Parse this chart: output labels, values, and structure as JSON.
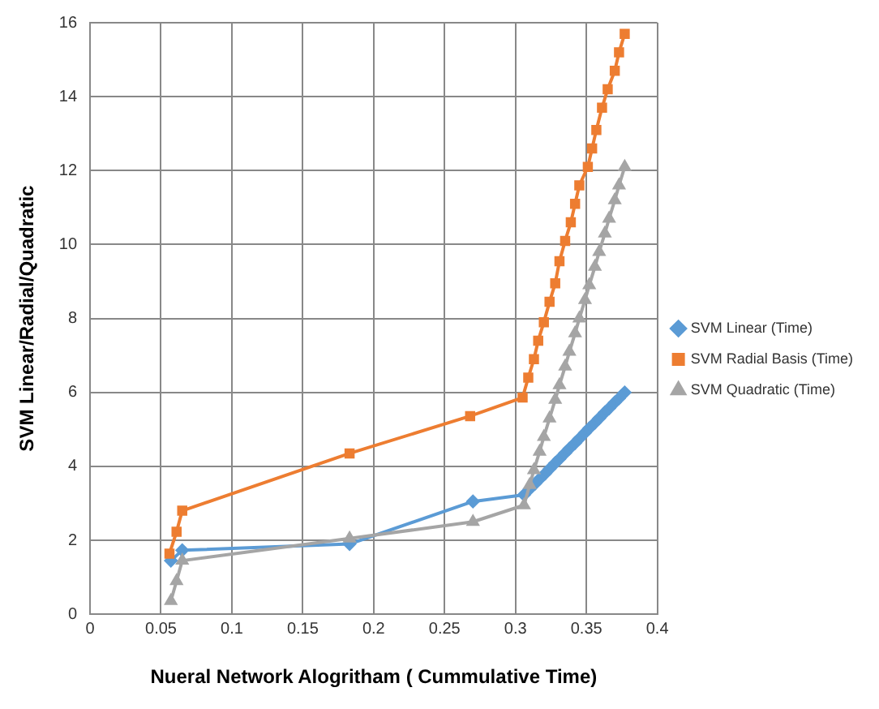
{
  "chart_data": {
    "type": "line",
    "xlabel": "Nueral Network Alogritham ( Cummulative Time)",
    "ylabel": "SVM Linear/Radial/Quadratic",
    "xlim": [
      0,
      0.4
    ],
    "xticks": [
      0,
      0.05,
      0.1,
      0.15,
      0.2,
      0.25,
      0.3,
      0.35,
      0.4
    ],
    "ylim": [
      0,
      16
    ],
    "yticks": [
      0,
      2,
      4,
      6,
      8,
      10,
      12,
      14,
      16
    ],
    "grid": true,
    "legend": "right",
    "series": [
      {
        "name": "SVM Linear (Time)",
        "color": "#5b9bd5",
        "marker": "diamond",
        "x": [
          0.057,
          0.065,
          0.183,
          0.27,
          0.306,
          0.31,
          0.314,
          0.317,
          0.321,
          0.324,
          0.328,
          0.331,
          0.335,
          0.338,
          0.342,
          0.345,
          0.349,
          0.352,
          0.356,
          0.359,
          0.363,
          0.366,
          0.37,
          0.373,
          0.377
        ],
        "values": [
          1.45,
          1.73,
          1.9,
          3.05,
          3.23,
          3.39,
          3.54,
          3.66,
          3.81,
          3.93,
          4.09,
          4.2,
          4.36,
          4.48,
          4.63,
          4.75,
          4.91,
          5.03,
          5.18,
          5.3,
          5.46,
          5.57,
          5.73,
          5.84,
          6.0
        ]
      },
      {
        "name": "SVM Radial Basis (Time)",
        "color": "#ed7d31",
        "marker": "square",
        "x": [
          0.056,
          0.061,
          0.065,
          0.183,
          0.268,
          0.305,
          0.309,
          0.313,
          0.316,
          0.32,
          0.324,
          0.328,
          0.331,
          0.335,
          0.339,
          0.342,
          0.345,
          0.351,
          0.354,
          0.357,
          0.361,
          0.365,
          0.37,
          0.373,
          0.377
        ],
        "values": [
          1.64,
          2.23,
          2.8,
          4.35,
          5.36,
          5.86,
          6.4,
          6.9,
          7.4,
          7.9,
          8.45,
          8.95,
          9.55,
          10.1,
          10.6,
          11.1,
          11.6,
          12.1,
          12.6,
          13.1,
          13.7,
          14.2,
          14.7,
          15.2,
          15.7
        ]
      },
      {
        "name": "SVM Quadratic (Time)",
        "color": "#a5a5a5",
        "marker": "triangle",
        "x": [
          0.057,
          0.061,
          0.065,
          0.183,
          0.27,
          0.306,
          0.31,
          0.313,
          0.317,
          0.32,
          0.324,
          0.328,
          0.331,
          0.335,
          0.338,
          0.342,
          0.345,
          0.349,
          0.352,
          0.356,
          0.359,
          0.363,
          0.366,
          0.37,
          0.373,
          0.377
        ],
        "values": [
          0.36,
          0.9,
          1.45,
          2.05,
          2.5,
          2.95,
          3.5,
          3.9,
          4.4,
          4.8,
          5.3,
          5.8,
          6.2,
          6.7,
          7.1,
          7.6,
          8.0,
          8.5,
          8.9,
          9.4,
          9.8,
          10.3,
          10.7,
          11.2,
          11.6,
          12.1
        ]
      }
    ]
  }
}
